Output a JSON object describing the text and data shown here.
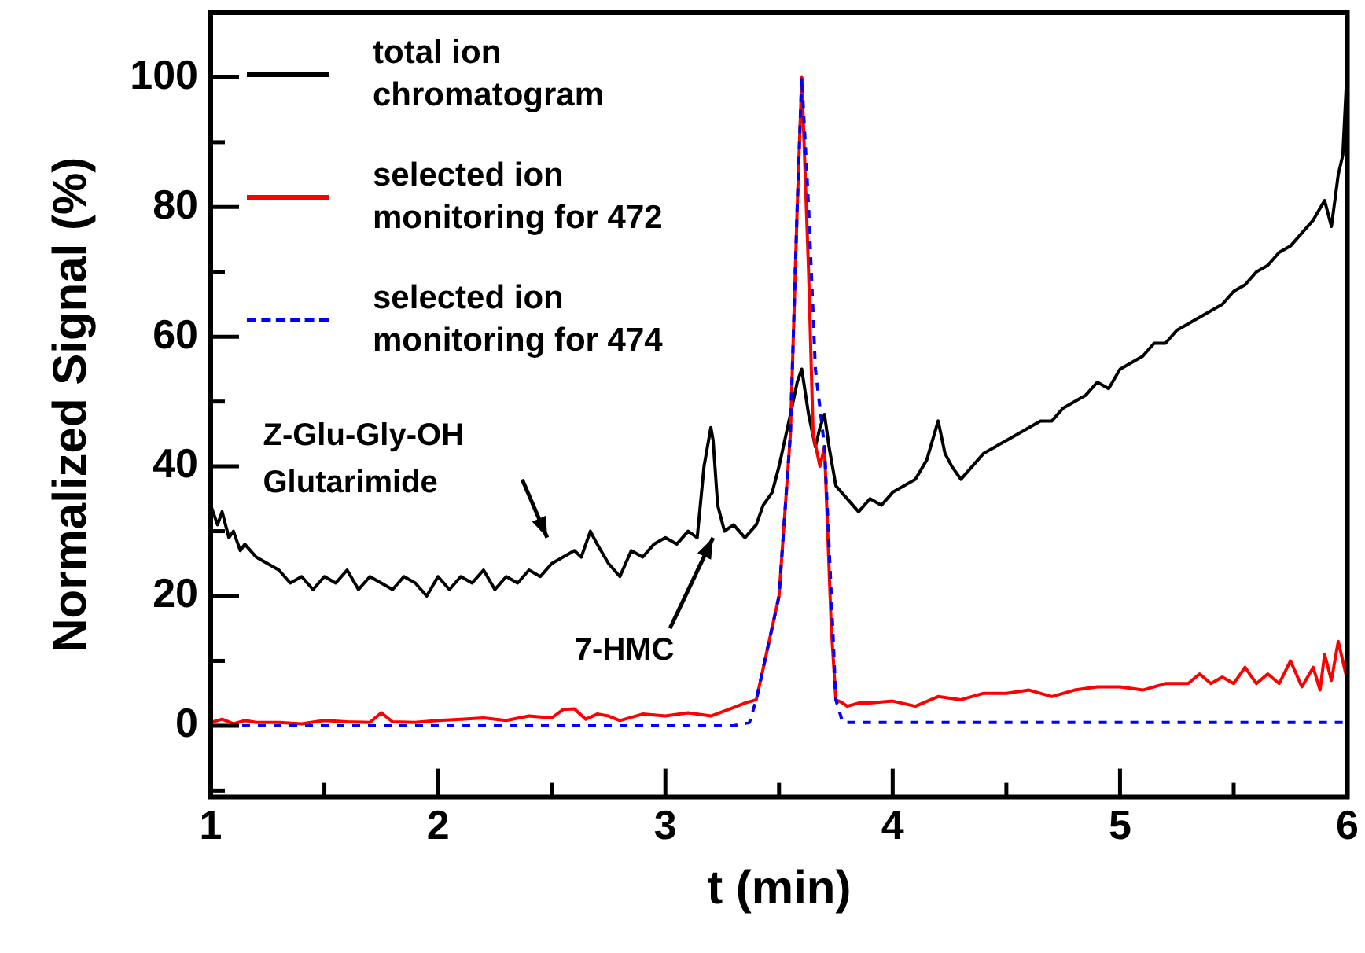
{
  "chart_data": {
    "type": "line",
    "xlabel": "t (min)",
    "ylabel": "Normalized Signal (%)",
    "xlim": [
      1,
      6
    ],
    "xticks": [
      1,
      {
        "value": 1.5,
        "label": null
      },
      2,
      {
        "value": 2.5,
        "label": null
      },
      3,
      {
        "value": 3.5,
        "label": null
      },
      4,
      {
        "value": 4.5,
        "label": null
      },
      5,
      {
        "value": 5.5,
        "label": null
      },
      6
    ],
    "ylim": [
      -11,
      110
    ],
    "yticks": [
      {
        "value": -10,
        "label": null
      },
      0,
      {
        "value": 10,
        "label": null
      },
      20,
      {
        "value": 30,
        "label": null
      },
      40,
      {
        "value": 50,
        "label": null
      },
      60,
      {
        "value": 70,
        "label": null
      },
      80,
      {
        "value": 90,
        "label": null
      },
      100
    ],
    "grid": false,
    "legend": "top left",
    "marker": "none",
    "series": [
      {
        "name": "total ion chromatogram",
        "color": "#000000",
        "line_style": "solid",
        "x": [
          1.0,
          1.03,
          1.05,
          1.08,
          1.1,
          1.13,
          1.15,
          1.2,
          1.25,
          1.3,
          1.35,
          1.4,
          1.45,
          1.5,
          1.55,
          1.6,
          1.65,
          1.7,
          1.75,
          1.8,
          1.85,
          1.9,
          1.95,
          2.0,
          2.05,
          2.1,
          2.15,
          2.2,
          2.25,
          2.3,
          2.35,
          2.4,
          2.45,
          2.5,
          2.55,
          2.6,
          2.63,
          2.67,
          2.7,
          2.75,
          2.8,
          2.85,
          2.9,
          2.95,
          3.0,
          3.05,
          3.1,
          3.14,
          3.17,
          3.2,
          3.21,
          3.23,
          3.26,
          3.3,
          3.35,
          3.4,
          3.43,
          3.47,
          3.5,
          3.55,
          3.58,
          3.6,
          3.63,
          3.66,
          3.68,
          3.7,
          3.72,
          3.75,
          3.8,
          3.85,
          3.9,
          3.95,
          4.0,
          4.05,
          4.1,
          4.15,
          4.2,
          4.23,
          4.26,
          4.3,
          4.35,
          4.4,
          4.45,
          4.5,
          4.55,
          4.6,
          4.65,
          4.7,
          4.75,
          4.8,
          4.85,
          4.9,
          4.95,
          5.0,
          5.05,
          5.1,
          5.15,
          5.2,
          5.25,
          5.3,
          5.35,
          5.4,
          5.45,
          5.5,
          5.55,
          5.6,
          5.65,
          5.7,
          5.75,
          5.8,
          5.85,
          5.9,
          5.93,
          5.96,
          5.98,
          6.0
        ],
        "values": [
          34,
          31,
          33,
          29,
          30,
          27,
          28,
          26,
          25,
          24,
          22,
          23,
          21,
          23,
          22,
          24,
          21,
          23,
          22,
          21,
          23,
          22,
          20,
          23,
          21,
          23,
          22,
          24,
          21,
          23,
          22,
          24,
          23,
          25,
          26,
          27,
          26,
          30,
          28,
          25,
          23,
          27,
          26,
          28,
          29,
          28,
          30,
          29,
          40,
          46,
          44,
          34,
          30,
          31,
          29,
          31,
          34,
          36,
          40,
          48,
          53,
          55,
          48,
          43,
          46,
          48,
          43,
          37,
          35,
          33,
          35,
          34,
          36,
          37,
          38,
          41,
          47,
          42,
          40,
          38,
          40,
          42,
          43,
          44,
          45,
          46,
          47,
          47,
          49,
          50,
          51,
          53,
          52,
          55,
          56,
          57,
          59,
          59,
          61,
          62,
          63,
          64,
          65,
          67,
          68,
          70,
          71,
          73,
          74,
          76,
          78,
          81,
          77,
          85,
          88,
          102
        ]
      },
      {
        "name": "selected ion monitoring for 472",
        "color": "#ff0000",
        "line_style": "solid",
        "x": [
          1.0,
          1.05,
          1.1,
          1.15,
          1.2,
          1.3,
          1.4,
          1.5,
          1.6,
          1.7,
          1.75,
          1.8,
          1.9,
          2.0,
          2.1,
          2.2,
          2.3,
          2.4,
          2.5,
          2.55,
          2.6,
          2.65,
          2.7,
          2.75,
          2.8,
          2.9,
          3.0,
          3.1,
          3.2,
          3.3,
          3.35,
          3.4,
          3.45,
          3.5,
          3.55,
          3.58,
          3.6,
          3.63,
          3.65,
          3.68,
          3.7,
          3.73,
          3.75,
          3.78,
          3.8,
          3.85,
          3.9,
          4.0,
          4.1,
          4.2,
          4.3,
          4.4,
          4.5,
          4.6,
          4.7,
          4.8,
          4.9,
          5.0,
          5.1,
          5.2,
          5.3,
          5.35,
          5.4,
          5.45,
          5.5,
          5.55,
          5.6,
          5.65,
          5.7,
          5.75,
          5.8,
          5.85,
          5.88,
          5.9,
          5.93,
          5.96,
          6.0
        ],
        "values": [
          0.5,
          1,
          0.3,
          0.8,
          0.5,
          0.5,
          0.3,
          0.8,
          0.6,
          0.5,
          2,
          0.6,
          0.5,
          0.8,
          1,
          1.2,
          0.8,
          1.5,
          1.2,
          2.5,
          2.6,
          1,
          1.8,
          1.5,
          0.8,
          1.8,
          1.5,
          2,
          1.5,
          2.8,
          3.5,
          4,
          12,
          20,
          45,
          80,
          100,
          70,
          45,
          40,
          43,
          15,
          4,
          3.5,
          3,
          3.5,
          3.5,
          3.8,
          3,
          4.5,
          4,
          5,
          5,
          5.5,
          4.5,
          5.5,
          6,
          6,
          5.5,
          6.5,
          6.5,
          8,
          6.5,
          7.5,
          6.5,
          9,
          6.5,
          8,
          6.5,
          10,
          6,
          9,
          5.5,
          11,
          7,
          13,
          7
        ]
      },
      {
        "name": "selected ion monitoring for 474",
        "color": "#0000ff",
        "line_style": "dashed",
        "x": [
          1.0,
          1.5,
          2.0,
          2.5,
          3.0,
          3.3,
          3.37,
          3.4,
          3.45,
          3.5,
          3.55,
          3.58,
          3.6,
          3.63,
          3.66,
          3.7,
          3.73,
          3.75,
          3.78,
          3.8,
          4.0,
          4.5,
          5.0,
          5.5,
          6.0
        ],
        "values": [
          0,
          0,
          0,
          0,
          0,
          0,
          0.5,
          4,
          12,
          20,
          45,
          80,
          100,
          80,
          55,
          43,
          20,
          4,
          0.5,
          0.5,
          0.5,
          0.5,
          0.5,
          0.5,
          0.5
        ]
      }
    ],
    "annotations": [
      "Z-Glu-Gly-OH Glutarimide",
      "7-HMC"
    ]
  }
}
